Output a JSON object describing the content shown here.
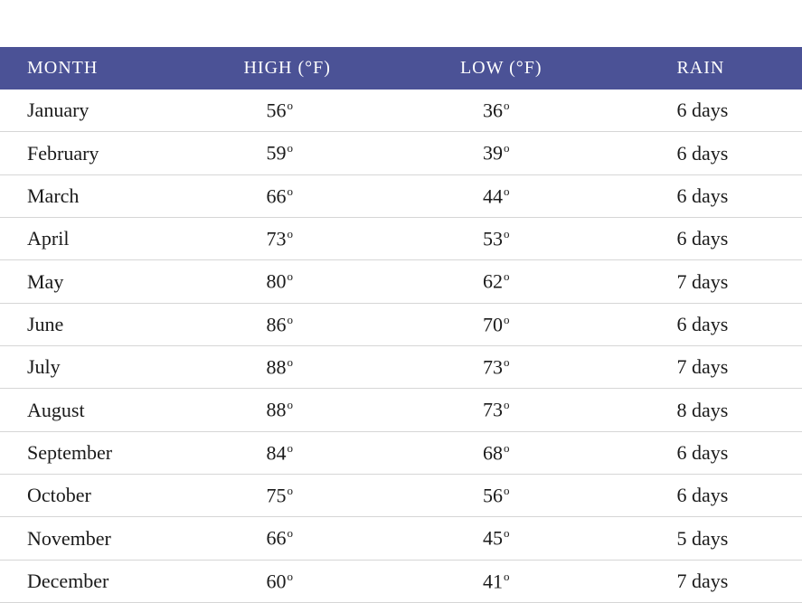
{
  "table": {
    "header_bg": "#4b5296",
    "header_text_color": "#ffffff",
    "row_border_color": "#d6d6d6",
    "text_color": "#1a1a1a",
    "font_family": "Georgia, serif",
    "header_fontsize": 20,
    "cell_fontsize": 22,
    "columns": [
      {
        "key": "month",
        "label": "MONTH"
      },
      {
        "key": "high",
        "label": "HIGH (°F)"
      },
      {
        "key": "low",
        "label": "LOW (°F)"
      },
      {
        "key": "rain",
        "label": "RAIN"
      }
    ],
    "rows": [
      {
        "month": "January",
        "high": "56",
        "low": "36",
        "rain": "6 days"
      },
      {
        "month": "February",
        "high": "59",
        "low": "39",
        "rain": "6 days"
      },
      {
        "month": "March",
        "high": "66",
        "low": "44",
        "rain": "6 days"
      },
      {
        "month": "April",
        "high": "73",
        "low": "53",
        "rain": "6 days"
      },
      {
        "month": "May",
        "high": "80",
        "low": "62",
        "rain": "7 days"
      },
      {
        "month": "June",
        "high": "86",
        "low": "70",
        "rain": "6 days"
      },
      {
        "month": "July",
        "high": "88",
        "low": "73",
        "rain": "7 days"
      },
      {
        "month": "August",
        "high": "88",
        "low": "73",
        "rain": "8 days"
      },
      {
        "month": "September",
        "high": "84",
        "low": "68",
        "rain": "6 days"
      },
      {
        "month": "October",
        "high": "75",
        "low": "56",
        "rain": "6 days"
      },
      {
        "month": "November",
        "high": "66",
        "low": "45",
        "rain": "5 days"
      },
      {
        "month": "December",
        "high": "60",
        "low": "41",
        "rain": "7 days"
      }
    ]
  }
}
